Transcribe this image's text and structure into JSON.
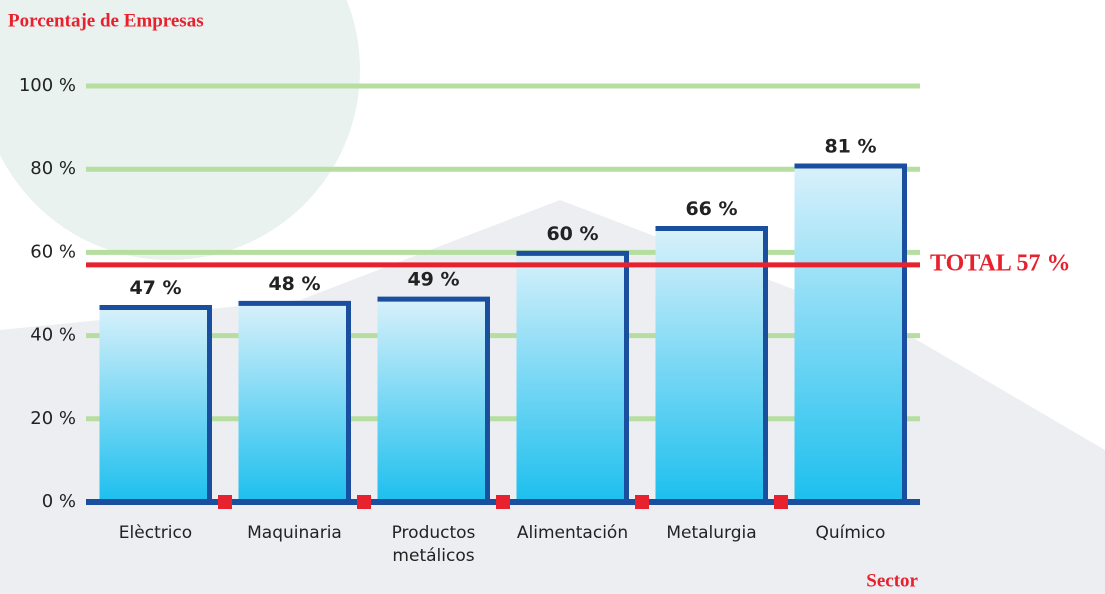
{
  "chart_data": {
    "type": "bar",
    "y_axis_title": "Porcentaje de Empresas",
    "x_axis_title": "Sector",
    "categories": [
      "Elèctrico",
      "Maquinaria",
      "Productos metálicos",
      "Alimentación",
      "Metalurgia",
      "Químico"
    ],
    "values": [
      47,
      48,
      49,
      60,
      66,
      81
    ],
    "value_labels": [
      "47 %",
      "48 %",
      "49 %",
      "60 %",
      "66 %",
      "81 %"
    ],
    "color": "#1cbfee",
    "ylim": [
      0,
      100
    ],
    "yticks": [
      {
        "value": 0,
        "label": "0 %"
      },
      {
        "value": 20,
        "label": "20 %"
      },
      {
        "value": 40,
        "label": "40 %"
      },
      {
        "value": 60,
        "label": "60 %"
      },
      {
        "value": 80,
        "label": "80 %"
      },
      {
        "value": 100,
        "label": "100 %"
      }
    ],
    "grid": true,
    "reference_line": {
      "value": 57,
      "label": "TOTAL 57 %",
      "color": "#e8212f"
    }
  }
}
